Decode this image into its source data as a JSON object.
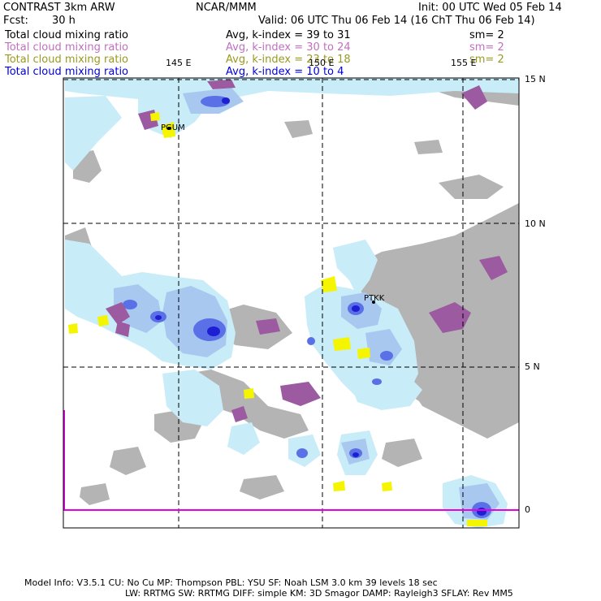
{
  "header": {
    "model_name": "CONTRAST  3km ARW",
    "org": "NCAR/MMM",
    "init": "Init: 00 UTC Wed 05 Feb 14",
    "fcst_label": "Fcst:",
    "fcst_value": "30 h",
    "valid": "Valid: 06 UTC Thu 06 Feb 14 (16 ChT Thu 06 Feb 14)"
  },
  "fields": [
    {
      "label": "Total cloud mixing ratio",
      "stat": "Avg, k-index =   39  to   31",
      "sm": "sm= 2",
      "color": "#000000"
    },
    {
      "label": "Total cloud mixing ratio",
      "stat": "Avg, k-index =   30  to   24",
      "sm": "sm= 2",
      "color": "#c070c0"
    },
    {
      "label": "Total cloud mixing ratio",
      "stat": "Avg, k-index =   23  to   18",
      "sm": "sm= 2",
      "color": "#9a9a20"
    },
    {
      "label": "Total cloud mixing ratio",
      "stat": "Avg, k-index =   10  to    4",
      "sm": "",
      "color": "#0000dd"
    }
  ],
  "map": {
    "lon_labels": [
      "145 E",
      "150 E",
      "155 E"
    ],
    "lat_labels": [
      "15 N",
      "10 N",
      "5 N",
      "0"
    ],
    "stations": [
      "PGUM",
      "PTKK"
    ],
    "colors": {
      "grey": "#b4b4b4",
      "purple": "#9c5aa0",
      "yellow": "#f5f500",
      "cloud_light": "#c8ecf8",
      "cloud_mid": "#a8c8f0",
      "cloud_blue": "#5a70e6",
      "cloud_core": "#1e1ed2",
      "magenta": "#e600e6"
    }
  },
  "footer": {
    "line1": "Model Info: V3.5.1     CU: No Cu     MP: Thompson     PBL: YSU        SF: Noah LSM      3.0 km   39 levels    18 sec",
    "line2": "LW: RRTMG     SW: RRTMG    DIFF: simple KM: 3D Smagor DAMP: Rayleigh3   SFLAY: Rev MM5"
  }
}
